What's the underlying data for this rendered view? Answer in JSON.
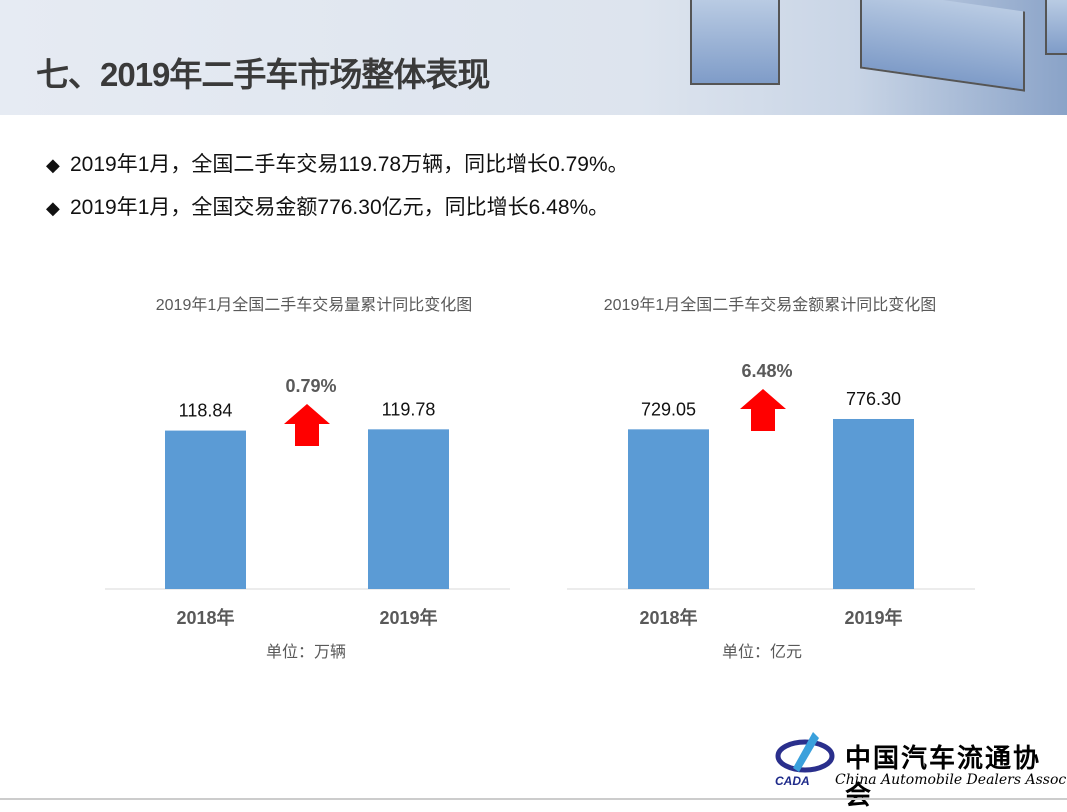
{
  "title": "七、2019年二手车市场整体表现",
  "bullets": [
    "2019年1月，全国二手车交易119.78万辆，同比增长0.79%。",
    "2019年1月，全国交易金额776.30亿元，同比增长6.48%。"
  ],
  "bullet_icon": "diamond-icon",
  "logo": {
    "cn": "中国汽车流通协会",
    "en": "China Automobile Dealers Association",
    "abbr": "CADA"
  },
  "colors": {
    "bar": "#5b9bd5",
    "arrow": "#ff0000"
  },
  "chart_data": [
    {
      "type": "bar",
      "title": "2019年1月全国二手车交易量累计同比变化图",
      "categories": [
        "2018年",
        "2019年"
      ],
      "values": [
        118.84,
        119.78
      ],
      "value_labels": [
        "118.84",
        "119.78"
      ],
      "growth": "0.79%",
      "unit": "单位：万辆",
      "ylim": [
        0,
        150
      ],
      "grid": false
    },
    {
      "type": "bar",
      "title": "2019年1月全国二手车交易金额累计同比变化图",
      "categories": [
        "2018年",
        "2019年"
      ],
      "values": [
        729.05,
        776.3
      ],
      "value_labels": [
        "729.05",
        "776.30"
      ],
      "growth": "6.48%",
      "unit": "单位：亿元",
      "ylim": [
        0,
        900
      ],
      "grid": false
    }
  ]
}
